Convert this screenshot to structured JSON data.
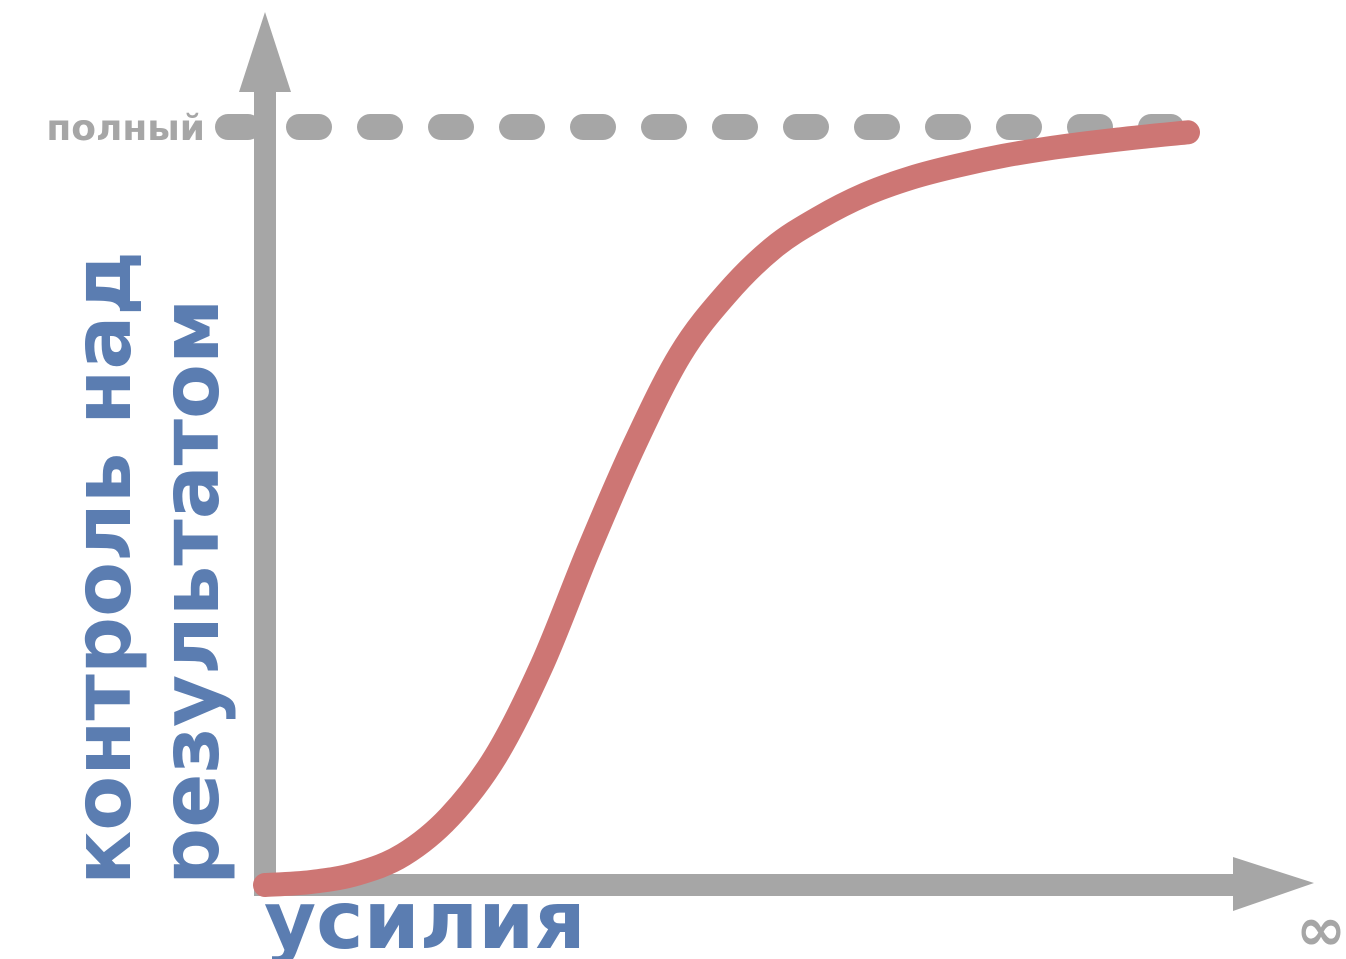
{
  "chart_data": {
    "type": "line",
    "title": "",
    "xlabel": "усилия",
    "ylabel_lines": [
      "контроль над",
      "результатом"
    ],
    "reference_line": {
      "label": "полный",
      "style": "dashed"
    },
    "x_end_label": "∞",
    "series": [
      {
        "x": [
          0,
          0.05,
          0.1,
          0.15,
          0.2,
          0.25,
          0.3,
          0.35,
          0.4,
          0.45,
          0.5,
          0.55,
          0.6,
          0.65,
          0.7,
          0.75,
          0.8,
          0.85,
          0.9,
          0.95,
          1
        ],
        "values": [
          0,
          0.004,
          0.015,
          0.04,
          0.09,
          0.17,
          0.29,
          0.44,
          0.58,
          0.7,
          0.78,
          0.84,
          0.88,
          0.911,
          0.933,
          0.949,
          0.962,
          0.972,
          0.98,
          0.987,
          0.993
        ]
      }
    ],
    "ylim": [
      0,
      1
    ],
    "xlim": [
      0,
      1
    ],
    "grid": false,
    "legend": "none",
    "colors": {
      "axis": "#a6a6a6",
      "curve": "#cd7674",
      "label": "#5b7db1",
      "reference": "#a6a6a6"
    }
  }
}
